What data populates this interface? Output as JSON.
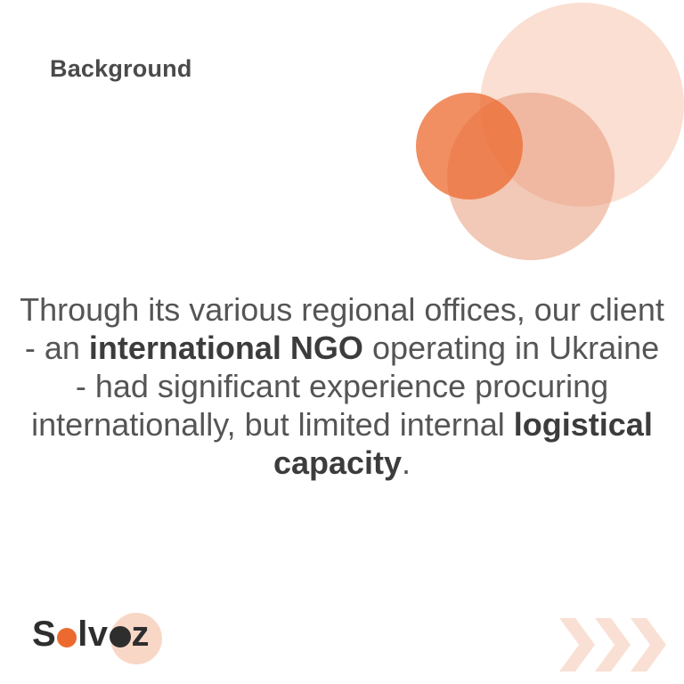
{
  "slide": {
    "heading": "Background",
    "body": {
      "part1": "Through its various regional offices, our client - an ",
      "bold1": "international NGO",
      "part2": " operating in Ukraine - had significant experience procuring internationally, but limited internal ",
      "bold2": "logistical capacity",
      "part3": "."
    }
  },
  "logo": {
    "s": "S",
    "lv": "lv",
    "z": "z"
  },
  "colors": {
    "accent": "#ec6a2f",
    "accent_light": "#f4b79c",
    "text": "#555555",
    "heading": "#4a4a4a"
  },
  "decorations": {
    "circles": "decorative-circles",
    "chevrons": "triple-chevron-right-icon"
  }
}
